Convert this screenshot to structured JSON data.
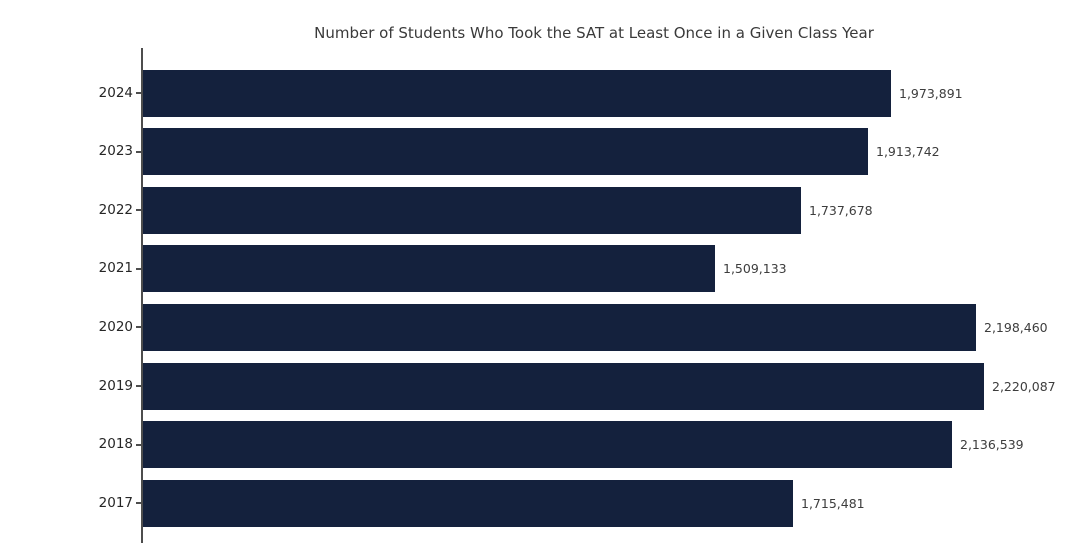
{
  "title": "Number of Students Who Took the SAT at Least Once in a Given Class Year",
  "colors": {
    "bar": "#14213d",
    "axis": "#4d4d4d",
    "title_text": "#3a3a3a",
    "year_text": "#262626",
    "value_text": "#3d3d3d",
    "background": "#ffffff"
  },
  "chart_data": {
    "type": "bar",
    "orientation": "horizontal",
    "title": "Number of Students Who Took the SAT at Least Once in a Given Class Year",
    "xlabel": "",
    "ylabel": "",
    "categories": [
      "2024",
      "2023",
      "2022",
      "2021",
      "2020",
      "2019",
      "2018",
      "2017"
    ],
    "values": [
      1973891,
      1913742,
      1737678,
      1509133,
      2198460,
      2220087,
      2136539,
      1715481
    ],
    "value_labels": [
      "1,973,891",
      "1,913,742",
      "1,737,678",
      "1,509,133",
      "2,198,460",
      "2,220,087",
      "2,136,539",
      "1,715,481"
    ],
    "xlim": [
      0,
      2390000
    ],
    "grid": false,
    "legend": "none",
    "bar_color": "#14213d",
    "value_labels_shown": true
  }
}
